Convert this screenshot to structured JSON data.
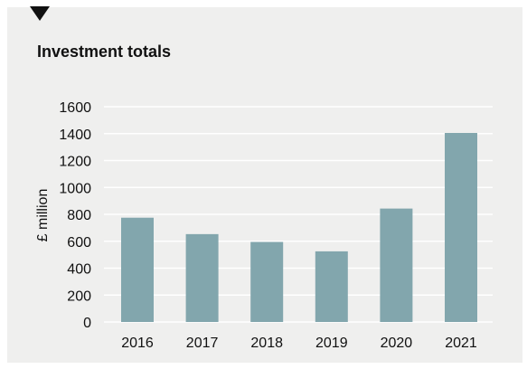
{
  "chart_data": {
    "type": "bar",
    "title": "Investment totals",
    "xlabel": "",
    "ylabel": "£ million",
    "categories": [
      "2016",
      "2017",
      "2018",
      "2019",
      "2020",
      "2021"
    ],
    "values": [
      775,
      653,
      595,
      525,
      843,
      1405
    ],
    "ylim": [
      0,
      1600
    ],
    "yticks": [
      "0",
      "200",
      "400",
      "600",
      "800",
      "1000",
      "1200",
      "1400",
      "1600"
    ],
    "grid": true,
    "legend": "none",
    "colors": {
      "bar": "#82a6ad",
      "grid": "#ffffff",
      "panel": "#efefee",
      "text": "#111111"
    }
  }
}
